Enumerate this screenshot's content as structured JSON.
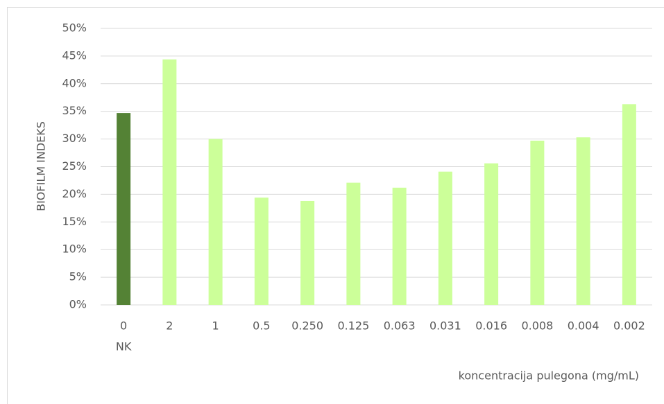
{
  "chart_data": {
    "type": "bar",
    "categories": [
      "0",
      "2",
      "1",
      "0.5",
      "0.250",
      "0.125",
      "0.063",
      "0.031",
      "0.016",
      "0.008",
      "0.004",
      "0.002"
    ],
    "control_label": "NK",
    "values": [
      34.7,
      44.4,
      30.0,
      19.4,
      18.8,
      22.1,
      21.2,
      24.1,
      25.6,
      29.7,
      30.3,
      36.3
    ],
    "colors": [
      "#548235",
      "#ccff99",
      "#ccff99",
      "#ccff99",
      "#ccff99",
      "#ccff99",
      "#ccff99",
      "#ccff99",
      "#ccff99",
      "#ccff99",
      "#ccff99",
      "#ccff99"
    ],
    "ylabel": "BIOFILM INDEKS",
    "xlabel": "koncentracija pulegona (mg/mL)",
    "ylim": [
      0,
      50
    ],
    "yticks": [
      {
        "value": 0,
        "label": "0%"
      },
      {
        "value": 5,
        "label": "5%"
      },
      {
        "value": 10,
        "label": "10%"
      },
      {
        "value": 15,
        "label": "15%"
      },
      {
        "value": 20,
        "label": "20%"
      },
      {
        "value": 25,
        "label": "25%"
      },
      {
        "value": 30,
        "label": "30%"
      },
      {
        "value": 35,
        "label": "35%"
      },
      {
        "value": 40,
        "label": "40%"
      },
      {
        "value": 45,
        "label": "45%"
      },
      {
        "value": 50,
        "label": "50%"
      }
    ],
    "grid": true
  }
}
